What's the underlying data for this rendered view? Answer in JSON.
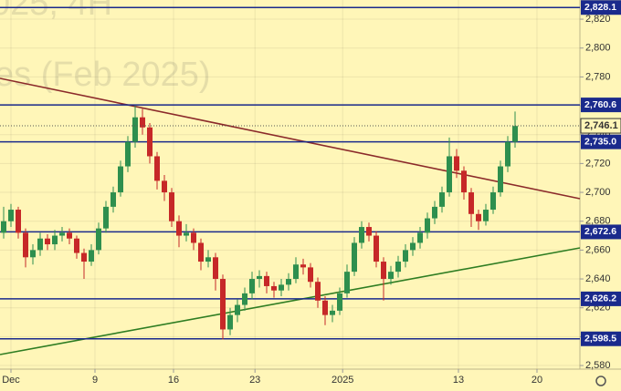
{
  "chart_data": {
    "type": "candlestick",
    "watermark": [
      "025, 4H",
      "es (Feb 2025)"
    ],
    "x": [
      0,
      1,
      2,
      3,
      4,
      5,
      6,
      7,
      8,
      9,
      10,
      11,
      12,
      13,
      14,
      15,
      16,
      17,
      18,
      19,
      20,
      21,
      22,
      23,
      24,
      25,
      26,
      27,
      28,
      29,
      30,
      31,
      32,
      33,
      34,
      35,
      36,
      37,
      38,
      39,
      40,
      41,
      42,
      43,
      44,
      45,
      46,
      47,
      48,
      49,
      50,
      51,
      52,
      53,
      54,
      55,
      56,
      57,
      58,
      59,
      60,
      61,
      62,
      63,
      64,
      65,
      66,
      67,
      68,
      69,
      70
    ],
    "ohlc": [
      [
        2672,
        2690,
        2668,
        2680
      ],
      [
        2680,
        2692,
        2676,
        2688
      ],
      [
        2688,
        2690,
        2668,
        2672
      ],
      [
        2672,
        2675,
        2648,
        2655
      ],
      [
        2655,
        2664,
        2650,
        2660
      ],
      [
        2660,
        2672,
        2656,
        2668
      ],
      [
        2668,
        2671,
        2660,
        2664
      ],
      [
        2664,
        2674,
        2660,
        2670
      ],
      [
        2670,
        2676,
        2666,
        2672
      ],
      [
        2672,
        2675,
        2664,
        2668
      ],
      [
        2668,
        2670,
        2654,
        2658
      ],
      [
        2658,
        2661,
        2640,
        2652
      ],
      [
        2652,
        2664,
        2649,
        2660
      ],
      [
        2660,
        2679,
        2657,
        2675
      ],
      [
        2675,
        2694,
        2672,
        2690
      ],
      [
        2690,
        2704,
        2686,
        2700
      ],
      [
        2700,
        2722,
        2697,
        2718
      ],
      [
        2718,
        2739,
        2714,
        2735
      ],
      [
        2735,
        2760,
        2731,
        2752
      ],
      [
        2752,
        2758,
        2740,
        2745
      ],
      [
        2745,
        2748,
        2720,
        2725
      ],
      [
        2725,
        2728,
        2702,
        2708
      ],
      [
        2708,
        2712,
        2694,
        2700
      ],
      [
        2700,
        2703,
        2676,
        2680
      ],
      [
        2680,
        2684,
        2662,
        2670
      ],
      [
        2670,
        2678,
        2666,
        2672
      ],
      [
        2672,
        2675,
        2660,
        2665
      ],
      [
        2665,
        2668,
        2646,
        2652
      ],
      [
        2652,
        2660,
        2648,
        2655
      ],
      [
        2655,
        2658,
        2632,
        2640
      ],
      [
        2640,
        2643,
        2598,
        2605
      ],
      [
        2605,
        2620,
        2601,
        2615
      ],
      [
        2615,
        2626,
        2610,
        2622
      ],
      [
        2622,
        2634,
        2618,
        2630
      ],
      [
        2630,
        2645,
        2626,
        2640
      ],
      [
        2640,
        2646,
        2634,
        2642
      ],
      [
        2642,
        2645,
        2630,
        2635
      ],
      [
        2635,
        2638,
        2627,
        2632
      ],
      [
        2632,
        2640,
        2628,
        2636
      ],
      [
        2636,
        2644,
        2632,
        2640
      ],
      [
        2640,
        2655,
        2637,
        2650
      ],
      [
        2650,
        2654,
        2643,
        2648
      ],
      [
        2648,
        2651,
        2634,
        2638
      ],
      [
        2638,
        2641,
        2620,
        2625
      ],
      [
        2625,
        2628,
        2608,
        2615
      ],
      [
        2615,
        2622,
        2610,
        2618
      ],
      [
        2618,
        2634,
        2615,
        2630
      ],
      [
        2630,
        2650,
        2627,
        2645
      ],
      [
        2645,
        2669,
        2642,
        2665
      ],
      [
        2665,
        2680,
        2661,
        2676
      ],
      [
        2676,
        2679,
        2666,
        2670
      ],
      [
        2670,
        2673,
        2648,
        2652
      ],
      [
        2652,
        2655,
        2625,
        2640
      ],
      [
        2640,
        2649,
        2636,
        2645
      ],
      [
        2645,
        2656,
        2641,
        2652
      ],
      [
        2652,
        2664,
        2648,
        2660
      ],
      [
        2660,
        2669,
        2656,
        2665
      ],
      [
        2665,
        2676,
        2661,
        2672
      ],
      [
        2672,
        2686,
        2668,
        2682
      ],
      [
        2682,
        2694,
        2678,
        2690
      ],
      [
        2690,
        2704,
        2686,
        2700
      ],
      [
        2700,
        2738,
        2697,
        2725
      ],
      [
        2725,
        2730,
        2710,
        2715
      ],
      [
        2715,
        2718,
        2695,
        2700
      ],
      [
        2700,
        2703,
        2676,
        2685
      ],
      [
        2685,
        2688,
        2674,
        2680
      ],
      [
        2680,
        2692,
        2677,
        2688
      ],
      [
        2688,
        2704,
        2685,
        2700
      ],
      [
        2700,
        2722,
        2697,
        2718
      ],
      [
        2718,
        2739,
        2714,
        2735
      ],
      [
        2735,
        2756,
        2731,
        2746
      ]
    ],
    "up_color": "#2e8f4e",
    "down_color": "#c62828",
    "xlim": [
      -0.5,
      78.875
    ],
    "xticks": [
      {
        "value": 1,
        "label": "Dec"
      },
      {
        "value": 12.5,
        "label": "9"
      },
      {
        "value": 23.25,
        "label": "16"
      },
      {
        "value": 34.4,
        "label": "23"
      },
      {
        "value": 46.4,
        "label": "2025"
      },
      {
        "value": 62.25,
        "label": "13"
      },
      {
        "value": 73,
        "label": "20"
      }
    ],
    "ylim": [
      2577.5,
      2833.3
    ],
    "yticks": [
      {
        "value": 2580,
        "label": "2,580"
      },
      {
        "value": 2600,
        "label": "2,600"
      },
      {
        "value": 2620,
        "label": "2,620"
      },
      {
        "value": 2640,
        "label": "2,640"
      },
      {
        "value": 2660,
        "label": "2,660"
      },
      {
        "value": 2680,
        "label": "2,680"
      },
      {
        "value": 2700,
        "label": "2,700"
      },
      {
        "value": 2720,
        "label": "2,720"
      },
      {
        "value": 2740,
        "label": "2,740"
      },
      {
        "value": 2760,
        "label": "2,760"
      },
      {
        "value": 2780,
        "label": "2,780"
      },
      {
        "value": 2800,
        "label": "2,800"
      },
      {
        "value": 2820,
        "label": "2,820"
      }
    ],
    "grid": true,
    "levels": [
      {
        "value": 2828.1,
        "label": "2,828.1"
      },
      {
        "value": 2760.6,
        "label": "2,760.6"
      },
      {
        "value": 2735.0,
        "label": "2,735.0"
      },
      {
        "value": 2672.6,
        "label": "2,672.6"
      },
      {
        "value": 2626.2,
        "label": "2,626.2"
      },
      {
        "value": 2598.5,
        "label": "2,598.5"
      }
    ],
    "level_color": "#1a2a8c",
    "last_price": {
      "value": 2746.1,
      "label": "2,746.1"
    },
    "trendlines": [
      {
        "color": "#8b2a2a",
        "points": [
          [
            -0.5,
            2779
          ],
          [
            78.875,
            2695.6
          ]
        ]
      },
      {
        "color": "#2e7d22",
        "points": [
          [
            -0.5,
            2587.6
          ],
          [
            78.875,
            2661.5
          ]
        ]
      }
    ]
  }
}
